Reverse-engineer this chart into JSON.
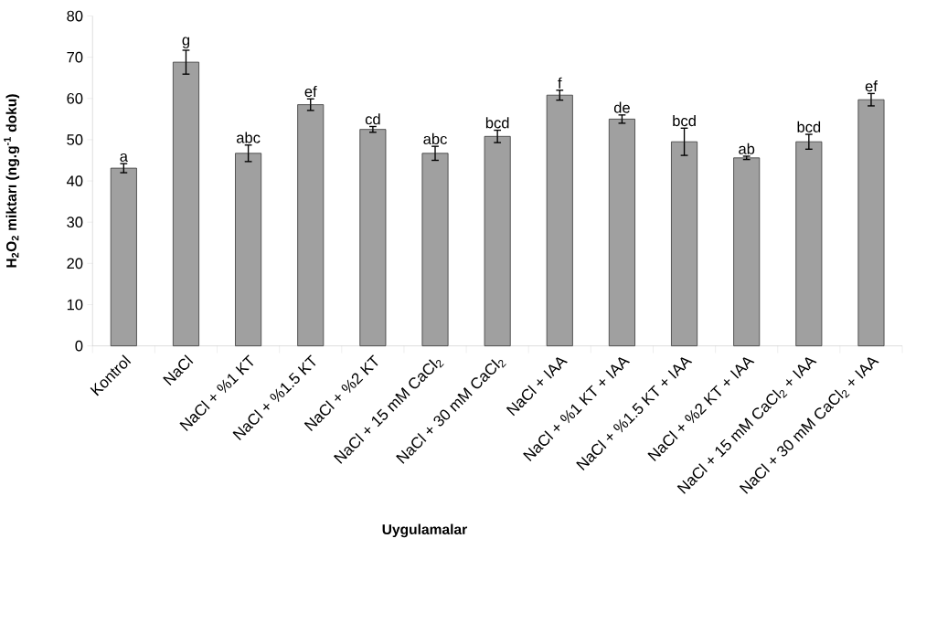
{
  "chart_data": {
    "type": "bar",
    "xlabel": "Uygulamalar",
    "ylabel": "**H$_{2}$O$_{2}$ miktarı (ng.g$^{-1}$ doku)**",
    "categories": [
      "Kontrol",
      "NaCl",
      "NaCl + %1 KT",
      "NaCl + %1.5 KT",
      "NaCl + %2 KT",
      "NaCl + 15 mM CaCl$_{2}$",
      "NaCl + 30 mM CaCl$_{2}$",
      "NaCl + IAA",
      "NaCl + %1 KT + IAA",
      "NaCl + %1.5 KT + IAA",
      "NaCl + %2 KT + IAA",
      "NaCl + 15 mM CaCl$_{2}$ + IAA",
      "NaCl + 30 mM CaCl$_{2}$ + IAA"
    ],
    "values": [
      43.1,
      68.8,
      46.7,
      58.5,
      52.5,
      46.7,
      50.8,
      60.8,
      55.0,
      49.5,
      45.6,
      49.5,
      59.7
    ],
    "errors": [
      1.1,
      2.9,
      2.0,
      1.4,
      0.7,
      1.7,
      1.5,
      1.2,
      1.0,
      3.3,
      0.4,
      1.8,
      1.5
    ],
    "color": "#a0a0a0",
    "ylim": [
      0,
      80
    ],
    "yticks": [
      0,
      10,
      20,
      30,
      40,
      50,
      60,
      70,
      80
    ],
    "annotations": [
      {
        "text": "a",
        "x": "Kontrol",
        "y": 44.2
      },
      {
        "text": "g",
        "x": "NaCl",
        "y": 71.7
      },
      {
        "text": "abc",
        "x": "NaCl + %1 KT",
        "y": 48.7
      },
      {
        "text": "ef",
        "x": "NaCl + %1.5 KT",
        "y": 59.9
      },
      {
        "text": "cd",
        "x": "NaCl + %2 KT",
        "y": 53.2
      },
      {
        "text": "abc",
        "x": "NaCl + 15 mM CaCl$_{2}$",
        "y": 48.4
      },
      {
        "text": "bcd",
        "x": "NaCl + 30 mM CaCl$_{2}$",
        "y": 52.3
      },
      {
        "text": "f",
        "x": "NaCl + IAA",
        "y": 62.0
      },
      {
        "text": "de",
        "x": "NaCl + %1 KT + IAA",
        "y": 56.0
      },
      {
        "text": "bcd",
        "x": "NaCl + %1.5 KT + IAA",
        "y": 52.8
      },
      {
        "text": "ab",
        "x": "NaCl + %2 KT + IAA",
        "y": 46.0
      },
      {
        "text": "bcd",
        "x": "NaCl + 15 mM CaCl$_{2}$ + IAA",
        "y": 51.3
      },
      {
        "text": "ef",
        "x": "NaCl + 30 mM CaCl$_{2}$ + IAA",
        "y": 61.2
      }
    ]
  }
}
